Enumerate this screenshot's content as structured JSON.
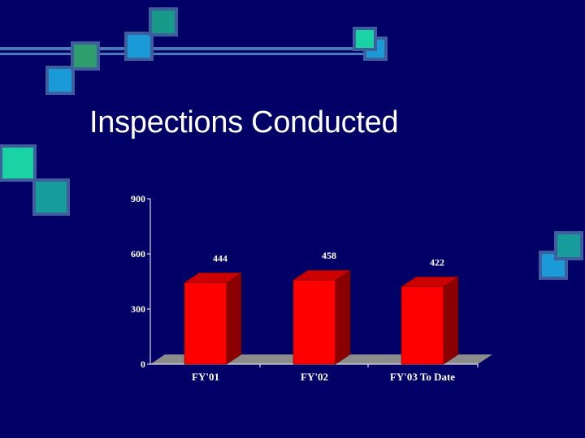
{
  "slide": {
    "title": "Inspections Conducted"
  },
  "colors": {
    "background": "#000066",
    "bar_front": "#ff0000",
    "bar_side": "#8b0000",
    "bar_top": "#cc0000",
    "floor": "#8c8c8c",
    "axis": "#ffffff"
  },
  "chart_data": {
    "type": "bar",
    "categories": [
      "FY'01",
      "FY'02",
      "FY'03 To Date"
    ],
    "values": [
      444,
      458,
      422
    ],
    "data_labels": [
      "444",
      "458",
      "422"
    ],
    "yticks": [
      0,
      300,
      600,
      900
    ],
    "ylim": [
      0,
      900
    ],
    "grid": false,
    "three_d": true
  }
}
